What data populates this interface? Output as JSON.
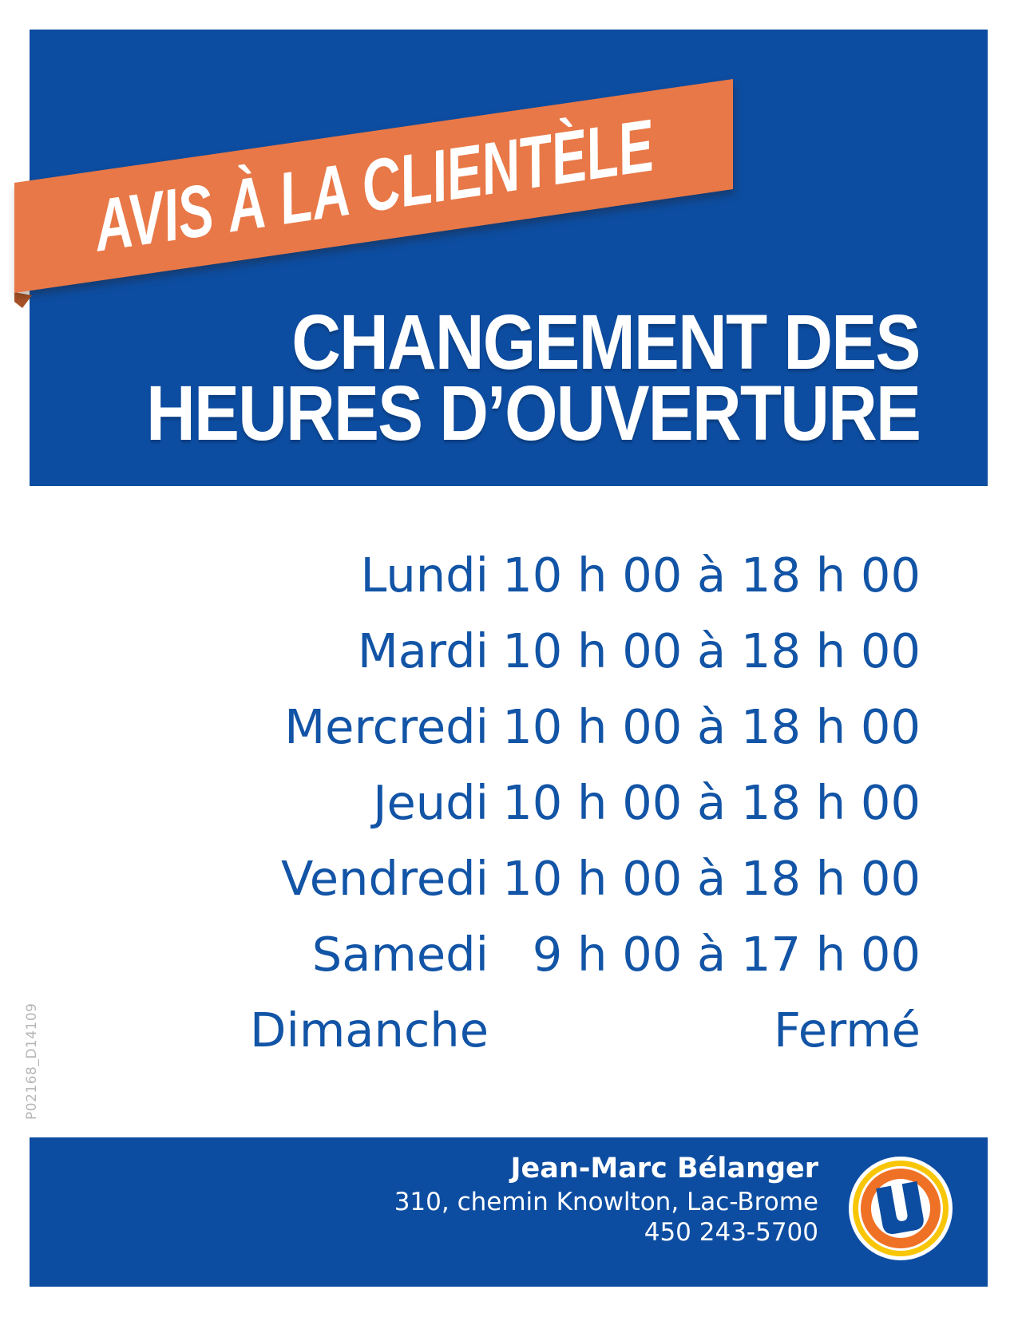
{
  "colors": {
    "blue": "#0d4da1",
    "text_blue": "#1254a6",
    "orange": "#e87847",
    "fold": "#a85228",
    "logo_orange": "#ef7125",
    "logo_yellow": "#f8c606",
    "code_gray": "#b4b6b8",
    "white": "#ffffff"
  },
  "ribbon": {
    "label": "AVIS À LA CLIENTÈLE"
  },
  "header": {
    "title_line1": "CHANGEMENT DES",
    "title_line2": "HEURES D’OUVERTURE"
  },
  "schedule": {
    "rows": [
      {
        "day": "Lundi",
        "hours": "10 h 00 à 18 h 00"
      },
      {
        "day": "Mardi",
        "hours": "10 h 00 à 18 h 00"
      },
      {
        "day": "Mercredi",
        "hours": "10 h 00 à 18 h 00"
      },
      {
        "day": "Jeudi",
        "hours": "10 h 00 à 18 h 00"
      },
      {
        "day": "Vendredi",
        "hours": "10 h 00 à 18 h 00"
      },
      {
        "day": "Samedi",
        "hours": "9 h 00 à 17 h 00"
      },
      {
        "day": "Dimanche",
        "hours": "Fermé"
      }
    ]
  },
  "side_code": "P02168_D14109",
  "footer": {
    "name": "Jean-Marc Bélanger",
    "address": "310, chemin Knowlton, Lac-Brome",
    "phone": "450 243-5700",
    "logo_letter": "U"
  }
}
